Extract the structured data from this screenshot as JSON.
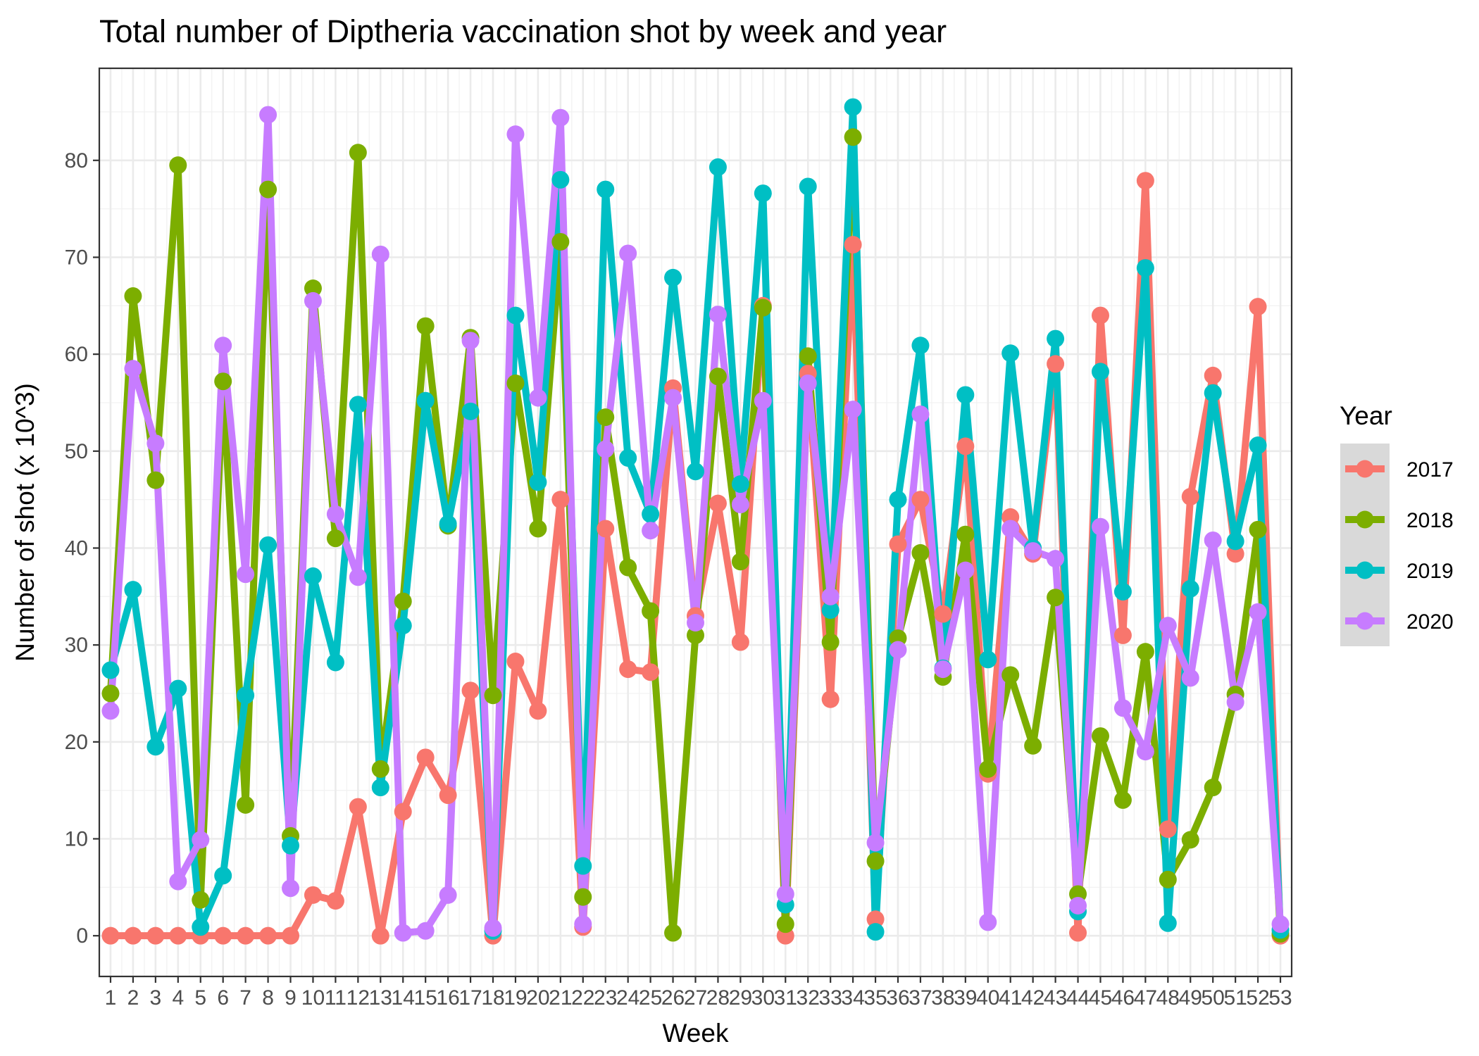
{
  "chart_data": {
    "type": "line",
    "title": "Total number of Diptheria vaccination shot by week and year",
    "xlabel": "Week",
    "ylabel": "Number of shot (x 10^3)",
    "x": [
      1,
      2,
      3,
      4,
      5,
      6,
      7,
      8,
      9,
      10,
      11,
      12,
      13,
      14,
      15,
      16,
      17,
      18,
      19,
      20,
      21,
      22,
      23,
      24,
      25,
      26,
      27,
      28,
      29,
      30,
      31,
      32,
      33,
      34,
      35,
      36,
      37,
      38,
      39,
      40,
      41,
      42,
      43,
      44,
      45,
      46,
      47,
      48,
      49,
      50,
      51,
      52,
      53
    ],
    "xlim": [
      0.5,
      53.5
    ],
    "ylim": [
      -4.2,
      89.5
    ],
    "yticks": [
      0,
      10,
      20,
      30,
      40,
      50,
      60,
      70,
      80
    ],
    "grid": true,
    "legend": {
      "title": "Year",
      "position": "right"
    },
    "series": [
      {
        "name": "2017",
        "color": "#F8766D",
        "values": [
          0,
          0,
          0,
          0,
          0,
          0,
          0,
          0,
          0,
          4.2,
          3.6,
          13.3,
          0,
          12.8,
          18.4,
          14.5,
          25.3,
          0,
          28.3,
          23.2,
          45,
          0.9,
          42,
          27.5,
          27.2,
          56.5,
          33,
          44.6,
          30.3,
          65,
          0,
          58,
          24.4,
          71.3,
          1.7,
          40.4,
          45,
          33.2,
          50.5,
          16.7,
          43.2,
          39.4,
          59,
          0.3,
          64,
          31,
          77.9,
          11,
          45.3,
          57.8,
          39.4,
          64.9,
          0
        ]
      },
      {
        "name": "2018",
        "color": "#7CAE00",
        "values": [
          25,
          66,
          47,
          79.5,
          3.7,
          57.2,
          13.5,
          77,
          10.3,
          66.8,
          41,
          80.8,
          17.2,
          34.5,
          62.9,
          42.3,
          61.7,
          24.8,
          57,
          42,
          71.6,
          4,
          53.5,
          38,
          33.5,
          0.3,
          31,
          57.7,
          38.6,
          64.8,
          1.2,
          59.8,
          30.3,
          82.4,
          7.7,
          30.7,
          39.5,
          26.7,
          41.4,
          17.2,
          26.9,
          19.6,
          34.9,
          4.3,
          20.6,
          14,
          29.3,
          5.8,
          9.9,
          15.3,
          24.9,
          41.9,
          0.2
        ]
      },
      {
        "name": "2019",
        "color": "#00BFC4",
        "values": [
          27.4,
          35.7,
          19.5,
          25.5,
          0.9,
          6.2,
          24.8,
          40.3,
          9.3,
          37.1,
          28.2,
          54.8,
          15.3,
          32,
          55.2,
          42.5,
          54.1,
          0.5,
          64,
          46.8,
          78,
          7.2,
          77,
          49.3,
          43.5,
          67.9,
          47.9,
          79.3,
          46.6,
          76.6,
          3.2,
          77.3,
          33.6,
          85.5,
          0.4,
          45,
          60.9,
          27.6,
          55.8,
          28.5,
          60.1,
          40,
          61.6,
          2.5,
          58.2,
          35.5,
          68.9,
          1.3,
          35.8,
          56,
          40.7,
          50.6,
          0.6
        ]
      },
      {
        "name": "2020",
        "color": "#C77CFF",
        "values": [
          23.2,
          58.5,
          50.8,
          5.6,
          9.9,
          60.9,
          37.3,
          84.7,
          4.9,
          65.5,
          43.5,
          37,
          70.3,
          0.3,
          0.5,
          4.2,
          61.4,
          0.8,
          82.7,
          55.5,
          84.4,
          1.2,
          50.2,
          70.4,
          41.8,
          55.5,
          32.3,
          64.1,
          44.5,
          55.2,
          4.3,
          57,
          35,
          54.3,
          9.6,
          29.5,
          53.8,
          27.5,
          37.7,
          1.4,
          42,
          39.7,
          38.9,
          3.1,
          42.2,
          23.5,
          19,
          32,
          26.6,
          40.8,
          24.1,
          33.4,
          1.2
        ]
      }
    ]
  }
}
